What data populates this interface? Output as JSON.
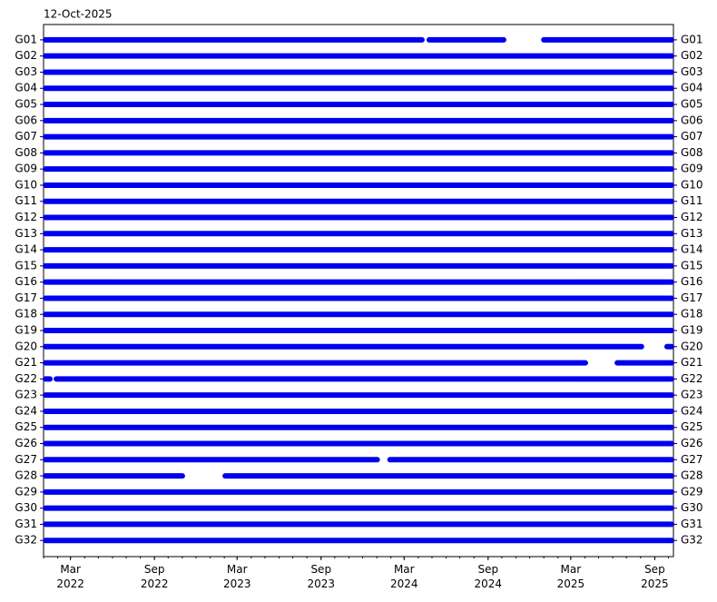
{
  "chart_data": {
    "type": "timeline",
    "title": "12-Oct-2025",
    "xlim": [
      "2022-01-01",
      "2025-10-12"
    ],
    "xticks": [
      {
        "value": "2022-03-01",
        "label": "Mar\n2022"
      },
      {
        "value": "2022-09-01",
        "label": "Sep\n2022"
      },
      {
        "value": "2023-03-01",
        "label": "Mar\n2023"
      },
      {
        "value": "2023-09-01",
        "label": "Sep\n2023"
      },
      {
        "value": "2024-03-01",
        "label": "Mar\n2024"
      },
      {
        "value": "2024-09-01",
        "label": "Sep\n2024"
      },
      {
        "value": "2025-03-01",
        "label": "Mar\n2025"
      },
      {
        "value": "2025-09-01",
        "label": "Sep\n2025"
      }
    ],
    "color": "#0000ee",
    "series": [
      {
        "name": "G01",
        "intervals": [
          [
            "2022-01-01",
            "2024-04-13"
          ],
          [
            "2024-04-21",
            "2024-10-09"
          ],
          [
            "2024-12-28",
            "2025-10-12"
          ]
        ]
      },
      {
        "name": "G02",
        "intervals": [
          [
            "2022-01-01",
            "2025-10-12"
          ]
        ]
      },
      {
        "name": "G03",
        "intervals": [
          [
            "2022-01-01",
            "2025-10-12"
          ]
        ]
      },
      {
        "name": "G04",
        "intervals": [
          [
            "2022-01-01",
            "2025-10-12"
          ]
        ]
      },
      {
        "name": "G05",
        "intervals": [
          [
            "2022-01-01",
            "2025-10-12"
          ]
        ]
      },
      {
        "name": "G06",
        "intervals": [
          [
            "2022-01-01",
            "2025-10-12"
          ]
        ]
      },
      {
        "name": "G07",
        "intervals": [
          [
            "2022-01-01",
            "2025-10-12"
          ]
        ]
      },
      {
        "name": "G08",
        "intervals": [
          [
            "2022-01-01",
            "2025-10-12"
          ]
        ]
      },
      {
        "name": "G09",
        "intervals": [
          [
            "2022-01-01",
            "2025-10-12"
          ]
        ]
      },
      {
        "name": "G10",
        "intervals": [
          [
            "2022-01-01",
            "2025-10-12"
          ]
        ]
      },
      {
        "name": "G11",
        "intervals": [
          [
            "2022-01-01",
            "2025-10-12"
          ]
        ]
      },
      {
        "name": "G12",
        "intervals": [
          [
            "2022-01-01",
            "2025-10-12"
          ]
        ]
      },
      {
        "name": "G13",
        "intervals": [
          [
            "2022-01-01",
            "2025-10-12"
          ]
        ]
      },
      {
        "name": "G14",
        "intervals": [
          [
            "2022-01-01",
            "2025-10-12"
          ]
        ]
      },
      {
        "name": "G15",
        "intervals": [
          [
            "2022-01-01",
            "2025-10-12"
          ]
        ]
      },
      {
        "name": "G16",
        "intervals": [
          [
            "2022-01-01",
            "2025-10-12"
          ]
        ]
      },
      {
        "name": "G17",
        "intervals": [
          [
            "2022-01-01",
            "2025-10-12"
          ]
        ]
      },
      {
        "name": "G18",
        "intervals": [
          [
            "2022-01-01",
            "2025-10-12"
          ]
        ]
      },
      {
        "name": "G19",
        "intervals": [
          [
            "2022-01-01",
            "2025-10-12"
          ]
        ]
      },
      {
        "name": "G20",
        "intervals": [
          [
            "2022-01-01",
            "2025-08-07"
          ],
          [
            "2025-09-24",
            "2025-10-12"
          ]
        ]
      },
      {
        "name": "G21",
        "intervals": [
          [
            "2022-01-01",
            "2025-04-06"
          ],
          [
            "2025-06-07",
            "2025-10-12"
          ]
        ]
      },
      {
        "name": "G22",
        "intervals": [
          [
            "2022-01-01",
            "2022-01-19"
          ],
          [
            "2022-01-25",
            "2025-10-12"
          ]
        ]
      },
      {
        "name": "G23",
        "intervals": [
          [
            "2022-01-01",
            "2025-10-12"
          ]
        ]
      },
      {
        "name": "G24",
        "intervals": [
          [
            "2022-01-01",
            "2025-10-12"
          ]
        ]
      },
      {
        "name": "G25",
        "intervals": [
          [
            "2022-01-01",
            "2025-10-12"
          ]
        ]
      },
      {
        "name": "G26",
        "intervals": [
          [
            "2022-01-01",
            "2025-10-12"
          ]
        ]
      },
      {
        "name": "G27",
        "intervals": [
          [
            "2022-01-01",
            "2024-01-06"
          ],
          [
            "2024-01-26",
            "2025-10-12"
          ]
        ]
      },
      {
        "name": "G28",
        "intervals": [
          [
            "2022-01-01",
            "2022-11-05"
          ],
          [
            "2023-01-30",
            "2025-10-12"
          ]
        ]
      },
      {
        "name": "G29",
        "intervals": [
          [
            "2022-01-01",
            "2025-10-12"
          ]
        ]
      },
      {
        "name": "G30",
        "intervals": [
          [
            "2022-01-01",
            "2025-10-12"
          ]
        ]
      },
      {
        "name": "G31",
        "intervals": [
          [
            "2022-01-01",
            "2025-10-12"
          ]
        ]
      },
      {
        "name": "G32",
        "intervals": [
          [
            "2022-01-01",
            "2025-10-12"
          ]
        ]
      }
    ]
  }
}
